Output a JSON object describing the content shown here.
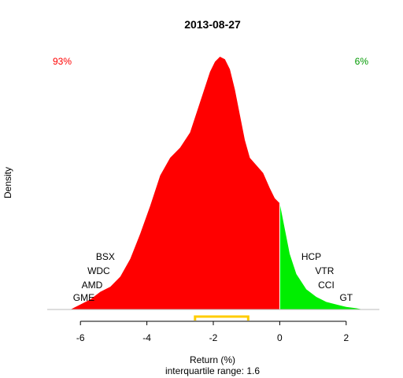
{
  "chart_data": {
    "type": "area",
    "title": "2013-08-27",
    "xlabel": "Return (%)",
    "ylabel": "Density",
    "subtitle": "interquartile range: 1.6",
    "xlim": [
      -7.0,
      3.0
    ],
    "ylim": [
      0,
      1.0
    ],
    "xticks": [
      -6,
      -4,
      -2,
      0,
      2
    ],
    "split_at": 0,
    "colors": {
      "negative": "#ff0000",
      "positive": "#00ee00",
      "negative_text": "#ff0000",
      "positive_text": "#009900",
      "iqr": "#ffcc00"
    },
    "left_pct": "93%",
    "right_pct": "6%",
    "iqr": [
      -2.55,
      -0.95
    ],
    "density": {
      "x": [
        -6.3,
        -6.0,
        -5.7,
        -5.4,
        -5.1,
        -4.8,
        -4.5,
        -4.2,
        -3.9,
        -3.6,
        -3.3,
        -3.0,
        -2.7,
        -2.5,
        -2.3,
        -2.1,
        -1.95,
        -1.8,
        -1.65,
        -1.5,
        -1.35,
        -1.2,
        -1.05,
        -0.9,
        -0.7,
        -0.5,
        -0.3,
        -0.15,
        0.0,
        0.15,
        0.3,
        0.5,
        0.8,
        1.1,
        1.4,
        1.7,
        2.0,
        2.3,
        2.5
      ],
      "y": [
        0.0,
        0.02,
        0.04,
        0.07,
        0.09,
        0.13,
        0.2,
        0.3,
        0.41,
        0.53,
        0.6,
        0.64,
        0.7,
        0.78,
        0.86,
        0.94,
        0.98,
        1.0,
        0.99,
        0.95,
        0.87,
        0.77,
        0.67,
        0.6,
        0.57,
        0.54,
        0.48,
        0.44,
        0.42,
        0.32,
        0.22,
        0.14,
        0.08,
        0.05,
        0.03,
        0.02,
        0.01,
        0.005,
        0.0
      ]
    },
    "left_tickers": [
      {
        "label": "BSX",
        "x": -5.25
      },
      {
        "label": "WDC",
        "x": -5.45
      },
      {
        "label": "AMD",
        "x": -5.65
      },
      {
        "label": "GME",
        "x": -5.9
      }
    ],
    "right_tickers": [
      {
        "label": "HCP",
        "x": 0.95
      },
      {
        "label": "VTR",
        "x": 1.35
      },
      {
        "label": "CCI",
        "x": 1.4
      },
      {
        "label": "GT",
        "x": 2.0
      }
    ]
  }
}
